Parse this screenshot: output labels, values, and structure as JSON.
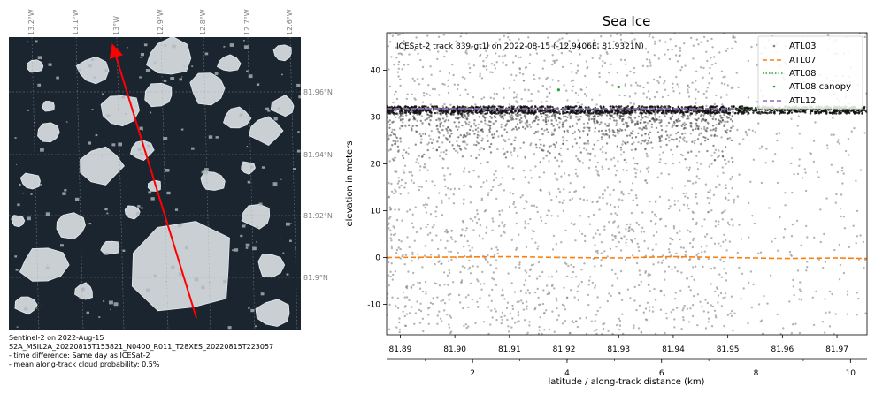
{
  "map_panel": {
    "lon_labels": [
      "13.2°W",
      "13.1°W",
      "13°W",
      "12.9°W",
      "12.8°W",
      "12.7°W",
      "12.6°W"
    ],
    "lat_labels": [
      "81.96°N",
      "81.94°N",
      "81.92°N",
      "81.9°N"
    ],
    "caption": [
      "Sentinel-2 on 2022-Aug-15",
      "S2A_MSIL2A_20220815T153821_N0400_R011_T28XES_20220815T223057",
      "- time difference: Same day as ICESat-2",
      "- mean along-track cloud probability: 0.5%"
    ],
    "track_color": "#ff0000"
  },
  "chart_data": {
    "type": "scatter",
    "title": "Sea Ice",
    "annotation": "ICESat-2 track 839-gt1l on 2022-08-15 (-12.9406E, 81.9321N)",
    "xlabel": "latitude / along-track distance (km)",
    "ylabel": "elevation in meters",
    "ylim": [
      -16.5,
      48
    ],
    "xlim_lat": [
      81.8875,
      81.9755
    ],
    "lat_ticks": [
      "81.89",
      "81.90",
      "81.91",
      "81.92",
      "81.93",
      "81.94",
      "81.95",
      "81.96",
      "81.97"
    ],
    "lat_tick_values": [
      81.89,
      81.9,
      81.91,
      81.92,
      81.93,
      81.94,
      81.95,
      81.96,
      81.97
    ],
    "dist_ticks": [
      "2",
      "4",
      "6",
      "8",
      "10"
    ],
    "dist_tick_values": [
      2,
      4,
      6,
      8,
      10
    ],
    "xlim_dist": [
      0.18,
      10.35
    ],
    "y_ticks": [
      "-10",
      "0",
      "10",
      "20",
      "30",
      "40"
    ],
    "y_tick_values": [
      -10,
      0,
      10,
      20,
      30,
      40
    ],
    "grid": false,
    "legend_position": "top-right",
    "series": [
      {
        "name": "ATL03",
        "kind": "scatter",
        "color": "#808080",
        "description_values": {
          "noise_range": [
            -16.5,
            48
          ],
          "surface_elevation": 31.5,
          "lat_range": [
            81.8875,
            81.9755
          ]
        }
      },
      {
        "name": "ATL07",
        "kind": "dashed-line",
        "color": "#ff7f0e",
        "lat": [
          81.8875,
          81.9,
          81.91,
          81.92,
          81.93,
          81.94,
          81.95,
          81.96,
          81.97,
          81.9755
        ],
        "values": [
          0.0,
          0.1,
          0.2,
          0.0,
          -0.1,
          0.2,
          0.0,
          -0.2,
          -0.1,
          -0.2
        ]
      },
      {
        "name": "ATL08",
        "kind": "dotted-line",
        "color": "#2ca02c",
        "lat": [
          81.8875,
          81.9755
        ],
        "values": [
          31.6,
          31.6
        ]
      },
      {
        "name": "ATL08 canopy",
        "kind": "points",
        "color": "#2ca02c",
        "lat": [
          81.919,
          81.93
        ],
        "values": [
          35.8,
          36.4
        ]
      },
      {
        "name": "ATL12",
        "kind": "dashed-line",
        "color": "#9467bd",
        "lat": [
          81.8875,
          81.951
        ],
        "values": [
          31.8,
          31.8
        ]
      }
    ]
  }
}
